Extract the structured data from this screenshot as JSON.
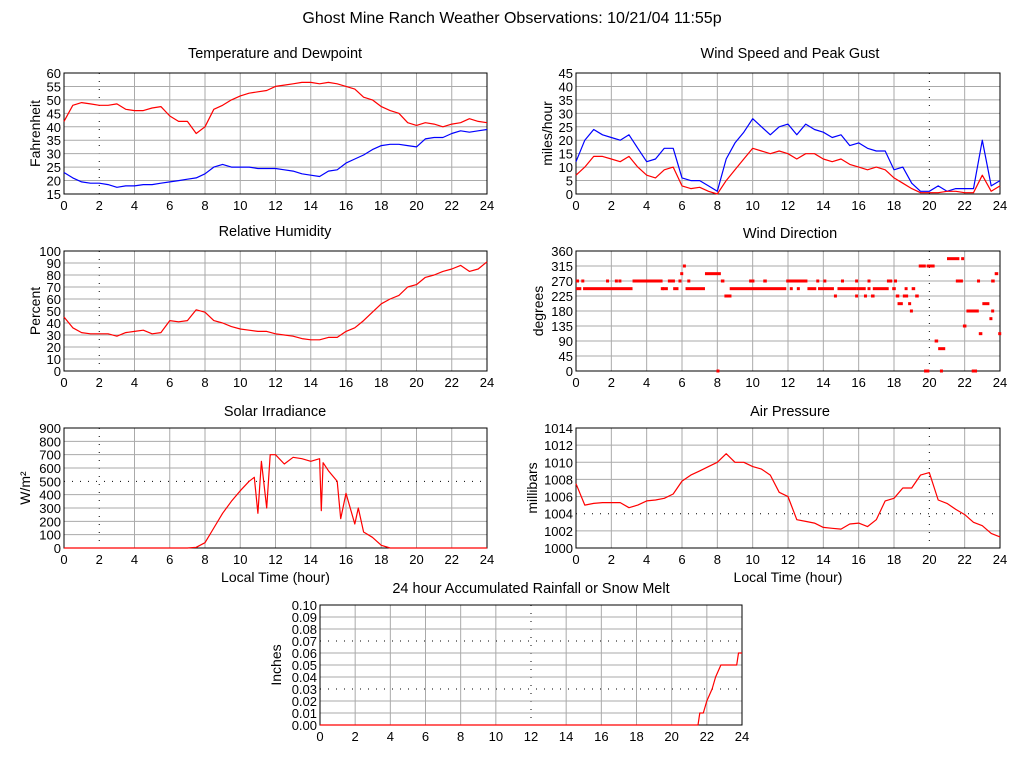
{
  "title": "Ghost Mine Ranch Weather Observations: 10/21/04 11:55p",
  "colors": {
    "red": "#ff0000",
    "blue": "#0000ff",
    "grid": "#aaaaaa"
  },
  "chart_data": [
    {
      "type": "line",
      "title": "Temperature and Dewpoint",
      "ylabel": "Fahrenheit",
      "xlabel": "",
      "xlim": [
        0,
        24
      ],
      "ylim": [
        15,
        60
      ],
      "xticks": [
        0,
        2,
        4,
        6,
        8,
        10,
        12,
        14,
        16,
        18,
        20,
        22,
        24
      ],
      "yticks": [
        "15",
        "20",
        "25",
        "30",
        "35",
        "40",
        "45",
        "50",
        "55",
        "60"
      ],
      "grid": true,
      "x": [
        0,
        0.5,
        1,
        1.5,
        2,
        2.5,
        3,
        3.5,
        4,
        4.5,
        5,
        5.5,
        6,
        6.5,
        7,
        7.5,
        8,
        8.5,
        9,
        9.5,
        10,
        10.5,
        11,
        11.5,
        12,
        12.5,
        13,
        13.5,
        14,
        14.5,
        15,
        15.5,
        16,
        16.5,
        17,
        17.5,
        18,
        18.5,
        19,
        19.5,
        20,
        20.5,
        21,
        21.5,
        22,
        22.5,
        23,
        23.5,
        24
      ],
      "series": [
        {
          "color": "#ff0000",
          "values": [
            42,
            48,
            49,
            48.5,
            48,
            48,
            48.5,
            46.5,
            46,
            46,
            47,
            47.5,
            44,
            42,
            42,
            37.5,
            40,
            46.5,
            48,
            50,
            51.5,
            52.5,
            53,
            53.5,
            55,
            55.5,
            56,
            56.5,
            56.5,
            56,
            56.5,
            56,
            55,
            54,
            51,
            50,
            47.5,
            46,
            45,
            41.5,
            40.5,
            41.5,
            41,
            40,
            41,
            41.5,
            43,
            42,
            41.5
          ]
        },
        {
          "color": "#0000ff",
          "values": [
            23,
            21,
            19.5,
            19,
            19,
            18.5,
            17.5,
            18,
            18,
            18.5,
            18.5,
            19,
            19.5,
            20,
            20.5,
            21,
            22.5,
            25,
            26,
            25,
            25,
            25,
            24.5,
            24.5,
            24.5,
            24,
            23.5,
            22.5,
            22,
            21.5,
            23.5,
            24,
            26.5,
            28,
            29.5,
            31.5,
            33,
            33.5,
            33.5,
            33,
            32.5,
            35.5,
            36,
            36,
            37.5,
            38.5,
            38,
            38.5,
            39
          ]
        }
      ]
    },
    {
      "type": "line",
      "title": "Wind Speed and Peak Gust",
      "ylabel": "miles/hour",
      "xlabel": "",
      "xlim": [
        0,
        24
      ],
      "ylim": [
        0,
        45
      ],
      "xticks": [
        0,
        2,
        4,
        6,
        8,
        10,
        12,
        14,
        16,
        18,
        20,
        22,
        24
      ],
      "yticks": [
        "0",
        "5",
        "10",
        "15",
        "20",
        "25",
        "30",
        "35",
        "40",
        "45"
      ],
      "grid": true,
      "x": [
        0,
        0.5,
        1,
        1.5,
        2,
        2.5,
        3,
        3.5,
        4,
        4.5,
        5,
        5.5,
        6,
        6.5,
        7,
        7.5,
        8,
        8.5,
        9,
        9.5,
        10,
        10.5,
        11,
        11.5,
        12,
        12.5,
        13,
        13.5,
        14,
        14.5,
        15,
        15.5,
        16,
        16.5,
        17,
        17.5,
        18,
        18.5,
        19,
        19.5,
        20,
        20.5,
        21,
        21.5,
        22,
        22.5,
        23,
        23.5,
        24
      ],
      "series": [
        {
          "color": "#0000ff",
          "values": [
            12,
            20,
            24,
            22,
            21,
            20,
            22,
            17,
            12,
            13,
            17,
            17,
            6,
            5,
            5,
            3,
            1,
            13,
            19,
            23,
            28,
            25,
            22,
            25,
            26,
            22,
            26,
            24,
            23,
            21,
            22,
            18,
            19,
            17,
            16,
            16,
            9,
            10,
            4,
            1,
            1,
            3,
            1,
            2,
            2,
            2,
            20,
            3,
            5
          ]
        },
        {
          "color": "#ff0000",
          "values": [
            7,
            10,
            14,
            14,
            13,
            12,
            14,
            10,
            7,
            6,
            9,
            10,
            3,
            2,
            2.5,
            1,
            0,
            5,
            9,
            13,
            17,
            16,
            15,
            16,
            15,
            13,
            15,
            15,
            13,
            12,
            13,
            11,
            10,
            9,
            10,
            9,
            6,
            4,
            2,
            0.5,
            0.5,
            0.5,
            1,
            1,
            0.5,
            0.5,
            7,
            1,
            3
          ]
        }
      ]
    },
    {
      "type": "line",
      "title": "Relative Humidity",
      "ylabel": "Percent",
      "xlabel": "",
      "xlim": [
        0,
        24
      ],
      "ylim": [
        0,
        100
      ],
      "xticks": [
        0,
        2,
        4,
        6,
        8,
        10,
        12,
        14,
        16,
        18,
        20,
        22,
        24
      ],
      "yticks": [
        "0",
        "10",
        "20",
        "30",
        "40",
        "50",
        "60",
        "70",
        "80",
        "90",
        "100"
      ],
      "grid": true,
      "x": [
        0,
        0.5,
        1,
        1.5,
        2,
        2.5,
        3,
        3.5,
        4,
        4.5,
        5,
        5.5,
        6,
        6.5,
        7,
        7.5,
        8,
        8.5,
        9,
        9.5,
        10,
        10.5,
        11,
        11.5,
        12,
        12.5,
        13,
        13.5,
        14,
        14.5,
        15,
        15.5,
        16,
        16.5,
        17,
        17.5,
        18,
        18.5,
        19,
        19.5,
        20,
        20.5,
        21,
        21.5,
        22,
        22.5,
        23,
        23.5,
        24
      ],
      "series": [
        {
          "color": "#ff0000",
          "values": [
            45,
            36,
            32,
            31,
            31,
            31,
            29,
            32,
            33,
            34,
            31,
            32,
            42,
            41,
            42,
            51,
            49,
            42,
            40,
            37,
            35,
            34,
            33,
            33,
            31,
            30,
            29,
            27,
            26,
            26,
            28,
            28,
            33,
            36,
            42,
            49,
            56,
            60,
            63,
            70,
            72,
            78,
            80,
            83,
            85,
            88,
            83,
            85,
            91
          ]
        }
      ]
    },
    {
      "type": "scatter",
      "title": "Wind Direction",
      "ylabel": "degrees",
      "xlabel": "",
      "xlim": [
        0,
        24
      ],
      "ylim": [
        0,
        360
      ],
      "xticks": [
        0,
        2,
        4,
        6,
        8,
        10,
        12,
        14,
        16,
        18,
        20,
        22,
        24
      ],
      "yticks": [
        "0",
        "45",
        "90",
        "135",
        "180",
        "225",
        "270",
        "315",
        "360"
      ],
      "grid": true,
      "runs_hour_start_end_degrees": [
        [
          0,
          0.1,
          270
        ],
        [
          0,
          0.3,
          247
        ],
        [
          0.3,
          0.4,
          270
        ],
        [
          0.4,
          3.2,
          247
        ],
        [
          1.7,
          1.75,
          270
        ],
        [
          2.2,
          2.25,
          270
        ],
        [
          2.4,
          2.5,
          270
        ],
        [
          3.2,
          4.9,
          270
        ],
        [
          4.8,
          4.85,
          247
        ],
        [
          4.9,
          5.2,
          247
        ],
        [
          5.2,
          5.6,
          270
        ],
        [
          5.5,
          5.8,
          247
        ],
        [
          5.8,
          5.9,
          270
        ],
        [
          5.9,
          6.05,
          292
        ],
        [
          6.05,
          6.15,
          315
        ],
        [
          6.2,
          7.3,
          247
        ],
        [
          6.3,
          6.4,
          270
        ],
        [
          7.3,
          8.2,
          292
        ],
        [
          7.95,
          8.05,
          0
        ],
        [
          8.2,
          8.4,
          270
        ],
        [
          8.4,
          8.8,
          225
        ],
        [
          8.7,
          11.9,
          247
        ],
        [
          9.8,
          10.1,
          270
        ],
        [
          10.6,
          10.8,
          270
        ],
        [
          11.9,
          13.1,
          270
        ],
        [
          12.1,
          12.15,
          247
        ],
        [
          12.5,
          12.55,
          247
        ],
        [
          13.1,
          13.6,
          247
        ],
        [
          13.6,
          13.75,
          270
        ],
        [
          13.7,
          14.6,
          247
        ],
        [
          14.0,
          14.1,
          270
        ],
        [
          14.6,
          14.7,
          225
        ],
        [
          14.8,
          15.9,
          247
        ],
        [
          15.0,
          15.15,
          270
        ],
        [
          15.8,
          15.85,
          270
        ],
        [
          15.8,
          15.9,
          225
        ],
        [
          15.9,
          16.4,
          247
        ],
        [
          16.3,
          16.4,
          225
        ],
        [
          16.5,
          16.6,
          270
        ],
        [
          16.5,
          16.6,
          247
        ],
        [
          16.7,
          16.9,
          225
        ],
        [
          16.8,
          17.7,
          247
        ],
        [
          17.6,
          17.9,
          270
        ],
        [
          17.9,
          18.1,
          247
        ],
        [
          18.0,
          18.1,
          270
        ],
        [
          18.1,
          18.3,
          225
        ],
        [
          18.2,
          18.5,
          202
        ],
        [
          18.5,
          18.8,
          225
        ],
        [
          18.6,
          18.7,
          247
        ],
        [
          18.8,
          18.9,
          202
        ],
        [
          18.9,
          18.95,
          180
        ],
        [
          19.0,
          19.2,
          247
        ],
        [
          19.2,
          19.4,
          225
        ],
        [
          19.4,
          19.8,
          315
        ],
        [
          19.7,
          20.0,
          0
        ],
        [
          19.85,
          19.9,
          315
        ],
        [
          19.9,
          20.3,
          315
        ],
        [
          20.3,
          20.5,
          90
        ],
        [
          20.5,
          20.9,
          67
        ],
        [
          20.6,
          20.7,
          0
        ],
        [
          21.0,
          21.7,
          337
        ],
        [
          21.5,
          21.9,
          270
        ],
        [
          21.8,
          21.9,
          337
        ],
        [
          21.9,
          22.1,
          135
        ],
        [
          22.1,
          22.8,
          180
        ],
        [
          22.4,
          22.7,
          0
        ],
        [
          22.7,
          22.8,
          270
        ],
        [
          22.8,
          23.0,
          112
        ],
        [
          23.0,
          23.4,
          202
        ],
        [
          23.4,
          23.5,
          157
        ],
        [
          23.5,
          23.55,
          180
        ],
        [
          23.5,
          23.7,
          270
        ],
        [
          23.7,
          23.9,
          292
        ],
        [
          23.9,
          24,
          112
        ]
      ],
      "series": [
        {
          "color": "#ff0000"
        }
      ]
    },
    {
      "type": "line",
      "title": "Solar Irradiance",
      "ylabel": "W/m²",
      "xlabel": "Local Time (hour)",
      "xlim": [
        0,
        24
      ],
      "ylim": [
        0,
        900
      ],
      "xticks": [
        0,
        2,
        4,
        6,
        8,
        10,
        12,
        14,
        16,
        18,
        20,
        22,
        24
      ],
      "yticks": [
        "0",
        "100",
        "200",
        "300",
        "400",
        "500",
        "600",
        "700",
        "800",
        "900"
      ],
      "grid": true,
      "x": [
        0,
        0.5,
        1,
        1.5,
        2,
        2.5,
        3,
        3.5,
        4,
        4.5,
        5,
        5.5,
        6,
        6.5,
        7,
        7.5,
        8,
        8.5,
        9,
        9.5,
        10,
        10.5,
        10.8,
        11,
        11.2,
        11.5,
        11.7,
        12,
        12.5,
        13,
        13.5,
        14,
        14.5,
        14.6,
        14.7,
        15,
        15.5,
        15.7,
        16,
        16.5,
        16.7,
        17,
        17.5,
        18,
        18.5,
        19,
        19.5,
        20,
        20.5,
        21,
        21.5,
        22,
        22.5,
        23,
        23.5,
        24
      ],
      "series": [
        {
          "color": "#ff0000",
          "values": [
            0,
            0,
            0,
            0,
            0,
            0,
            0,
            0,
            0,
            0,
            0,
            0,
            0,
            0,
            0,
            5,
            40,
            150,
            260,
            350,
            430,
            500,
            530,
            260,
            650,
            300,
            700,
            700,
            630,
            680,
            670,
            650,
            670,
            280,
            640,
            580,
            500,
            220,
            410,
            180,
            300,
            120,
            80,
            20,
            0,
            0,
            0,
            0,
            0,
            0,
            0,
            0,
            0,
            0,
            0,
            0
          ]
        }
      ]
    },
    {
      "type": "line",
      "title": "Air Pressure",
      "ylabel": "millibars",
      "xlabel": "Local Time (hour)",
      "xlim": [
        0,
        24
      ],
      "ylim": [
        1000,
        1014
      ],
      "xticks": [
        0,
        2,
        4,
        6,
        8,
        10,
        12,
        14,
        16,
        18,
        20,
        22,
        24
      ],
      "yticks": [
        "1000",
        "1002",
        "1004",
        "1006",
        "1008",
        "1010",
        "1012",
        "1014"
      ],
      "grid": true,
      "x": [
        0,
        0.5,
        1,
        1.5,
        2,
        2.5,
        3,
        3.5,
        4,
        4.5,
        5,
        5.5,
        6,
        6.5,
        7,
        7.5,
        8,
        8.5,
        9,
        9.5,
        10,
        10.5,
        11,
        11.5,
        12,
        12.5,
        13,
        13.5,
        14,
        14.5,
        15,
        15.5,
        16,
        16.5,
        17,
        17.5,
        18,
        18.5,
        19,
        19.5,
        20,
        20.5,
        21,
        21.5,
        22,
        22.5,
        23,
        23.5,
        24
      ],
      "series": [
        {
          "color": "#ff0000",
          "values": [
            1007.5,
            1005,
            1005.2,
            1005.3,
            1005.3,
            1005.3,
            1004.7,
            1005,
            1005.5,
            1005.6,
            1005.8,
            1006.3,
            1007.8,
            1008.5,
            1009,
            1009.5,
            1010,
            1011,
            1010,
            1010,
            1009.5,
            1009.2,
            1008.5,
            1006.5,
            1006,
            1003.3,
            1003.1,
            1002.9,
            1002.4,
            1002.3,
            1002.2,
            1002.8,
            1002.9,
            1002.5,
            1003.3,
            1005.5,
            1005.8,
            1007,
            1007,
            1008.5,
            1008.8,
            1005.6,
            1005.2,
            1004.5,
            1003.9,
            1003,
            1002.6,
            1001.7,
            1001.3
          ]
        }
      ]
    },
    {
      "type": "line",
      "title": "24 hour Accumulated Rainfall or Snow Melt",
      "ylabel": "Inches",
      "xlabel": "",
      "xlim": [
        0,
        24
      ],
      "ylim": [
        0,
        0.1
      ],
      "xticks": [
        0,
        2,
        4,
        6,
        8,
        10,
        12,
        14,
        16,
        18,
        20,
        22,
        24
      ],
      "yticks": [
        "0.00",
        "0.01",
        "0.02",
        "0.03",
        "0.04",
        "0.05",
        "0.06",
        "0.07",
        "0.08",
        "0.09",
        "0.10"
      ],
      "grid": true,
      "x": [
        0,
        21.5,
        21.6,
        21.8,
        22.0,
        22.3,
        22.5,
        22.8,
        23.7,
        23.8,
        24
      ],
      "series": [
        {
          "color": "#ff0000",
          "values": [
            0,
            0,
            0.01,
            0.01,
            0.02,
            0.03,
            0.04,
            0.05,
            0.05,
            0.06,
            0.06
          ]
        }
      ]
    }
  ]
}
